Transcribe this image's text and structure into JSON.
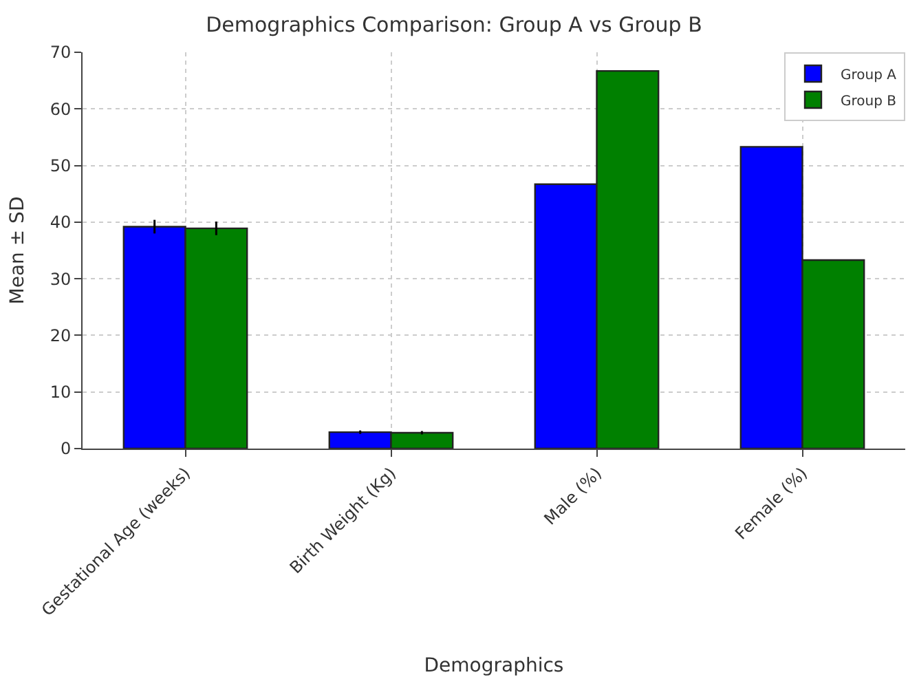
{
  "chart_data": {
    "type": "bar",
    "title": "Demographics Comparison: Group A vs Group B",
    "xlabel": "Demographics",
    "ylabel": "Mean ± SD",
    "categories": [
      "Gestational Age (weeks)",
      "Birth Weight (Kg)",
      "Male (%)",
      "Female (%)"
    ],
    "series": [
      {
        "name": "Group A",
        "color": "#0000ff",
        "values": [
          39.2,
          2.9,
          46.7,
          53.3
        ],
        "errors": [
          1.2,
          0.3,
          null,
          null
        ]
      },
      {
        "name": "Group B",
        "color": "#008000",
        "values": [
          38.9,
          2.8,
          66.7,
          33.3
        ],
        "errors": [
          1.2,
          0.3,
          null,
          null
        ]
      }
    ],
    "ylim": [
      0,
      70
    ],
    "yticks": [
      0,
      10,
      20,
      30,
      40,
      50,
      60,
      70
    ],
    "grid": true,
    "legend": "top right"
  }
}
